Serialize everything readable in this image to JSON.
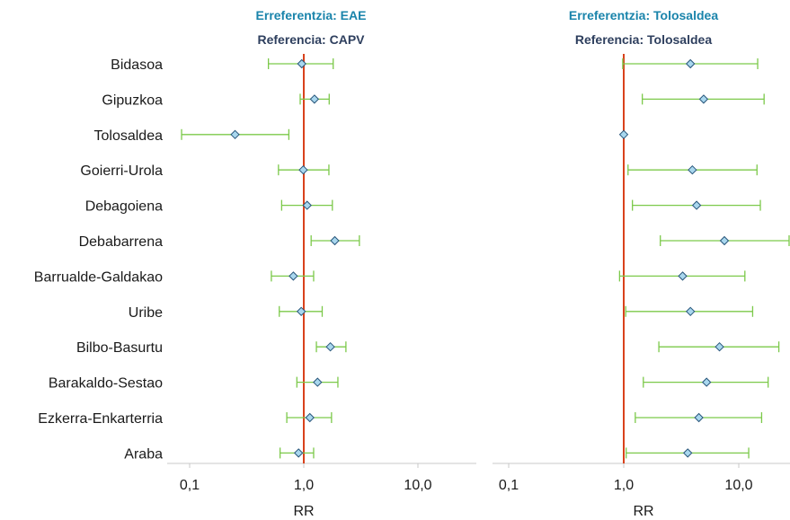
{
  "colors": {
    "title_eu": "#1a84ab",
    "title_es": "#2e3f5e",
    "ci_line": "#7cc94a",
    "marker_fill": "#a9d7ee",
    "marker_stroke": "#27557a",
    "reference_line": "#d9421c",
    "axis": "#c8c8c8"
  },
  "chart_data": [
    {
      "type": "scatter",
      "subtype": "forest-plot",
      "title": "Erreferentzia: EAE",
      "subtitle": "Referencia: CAPV",
      "xlabel": "RR",
      "x_scale": "log",
      "xlim": [
        0.08,
        24
      ],
      "x_ticks": [
        {
          "value": 0.1,
          "label": "0,1"
        },
        {
          "value": 1,
          "label": "1,0"
        },
        {
          "value": 10,
          "label": "10,0"
        }
      ],
      "reference_value": 1,
      "categories": [
        "Bidasoa",
        "Gipuzkoa",
        "Tolosaldea",
        "Goierri-Urola",
        "Debagoiena",
        "Debabarrena",
        "Barrualde-Galdakao",
        "Uribe",
        "Bilbo-Basurtu",
        "Barakaldo-Sestao",
        "Ezkerra-Enkarterria",
        "Araba"
      ],
      "values": [
        0.96,
        1.24,
        0.25,
        0.99,
        1.07,
        1.87,
        0.81,
        0.95,
        1.71,
        1.32,
        1.13,
        0.9
      ],
      "ci_low": [
        0.49,
        0.93,
        0.085,
        0.6,
        0.64,
        1.16,
        0.52,
        0.61,
        1.29,
        0.87,
        0.71,
        0.62
      ],
      "ci_high": [
        1.81,
        1.67,
        0.74,
        1.66,
        1.78,
        3.07,
        1.22,
        1.45,
        2.34,
        1.99,
        1.75,
        1.22
      ]
    },
    {
      "type": "scatter",
      "subtype": "forest-plot",
      "title": "Erreferentzia: Tolosaldea",
      "subtitle": "Referencia: Tolosaldea",
      "xlabel": "RR",
      "x_scale": "log",
      "xlim": [
        0.08,
        28
      ],
      "x_ticks": [
        {
          "value": 0.1,
          "label": "0,1"
        },
        {
          "value": 1,
          "label": "1,0"
        },
        {
          "value": 10,
          "label": "10,0"
        }
      ],
      "reference_value": 1,
      "categories": [
        "Bidasoa",
        "Gipuzkoa",
        "Tolosaldea",
        "Goierri-Urola",
        "Debagoiena",
        "Debabarrena",
        "Barrualde-Galdakao",
        "Uribe",
        "Bilbo-Basurtu",
        "Barakaldo-Sestao",
        "Ezkerra-Enkarterria",
        "Araba"
      ],
      "values": [
        3.8,
        4.95,
        1.0,
        3.95,
        4.3,
        7.5,
        3.25,
        3.8,
        6.8,
        5.25,
        4.5,
        3.6
      ],
      "ci_low": [
        0.98,
        1.45,
        1.0,
        1.09,
        1.19,
        2.08,
        0.92,
        1.04,
        2.02,
        1.48,
        1.26,
        1.05
      ],
      "ci_high": [
        14.6,
        16.6,
        1.0,
        14.4,
        15.4,
        28.0,
        11.3,
        13.2,
        22.3,
        18.0,
        15.8,
        12.2
      ]
    }
  ]
}
